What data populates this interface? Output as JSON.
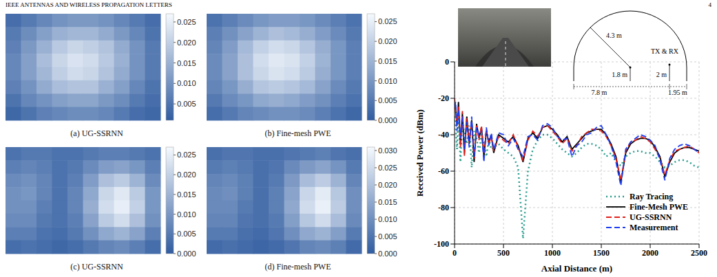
{
  "header": {
    "journal": "IEEE ANTENNAS AND WIRELESS PROPAGATION LETTERS",
    "page": "4"
  },
  "chart_data": [
    {
      "type": "heatmap",
      "caption": "(a) UG-SSRNN",
      "cells": [
        [
          0.004,
          0.006,
          0.008,
          0.01,
          0.011,
          0.011,
          0.01,
          0.008,
          0.006,
          0.004
        ],
        [
          0.006,
          0.009,
          0.012,
          0.015,
          0.016,
          0.016,
          0.014,
          0.011,
          0.008,
          0.005
        ],
        [
          0.007,
          0.011,
          0.015,
          0.019,
          0.021,
          0.02,
          0.018,
          0.014,
          0.01,
          0.006
        ],
        [
          0.008,
          0.012,
          0.017,
          0.021,
          0.023,
          0.022,
          0.019,
          0.015,
          0.01,
          0.006
        ],
        [
          0.008,
          0.012,
          0.016,
          0.02,
          0.022,
          0.021,
          0.018,
          0.014,
          0.01,
          0.006
        ],
        [
          0.007,
          0.01,
          0.014,
          0.017,
          0.018,
          0.018,
          0.015,
          0.012,
          0.008,
          0.005
        ],
        [
          0.005,
          0.008,
          0.01,
          0.012,
          0.013,
          0.013,
          0.011,
          0.009,
          0.006,
          0.004
        ],
        [
          0.003,
          0.005,
          0.007,
          0.008,
          0.009,
          0.009,
          0.008,
          0.006,
          0.004,
          0.003
        ]
      ],
      "colorbar": {
        "range": [
          0.001,
          0.027
        ],
        "ticks": [
          {
            "value": 0.005,
            "label": "0.005"
          },
          {
            "value": 0.01,
            "label": "0.010"
          },
          {
            "value": 0.015,
            "label": "0.015"
          },
          {
            "value": 0.02,
            "label": "0.020"
          },
          {
            "value": 0.025,
            "label": "0.025"
          }
        ]
      }
    },
    {
      "type": "heatmap",
      "caption": "(b) Fine-mesh PWE",
      "cells": [
        [
          0.004,
          0.006,
          0.008,
          0.01,
          0.011,
          0.011,
          0.01,
          0.008,
          0.006,
          0.004
        ],
        [
          0.006,
          0.009,
          0.012,
          0.015,
          0.017,
          0.016,
          0.014,
          0.011,
          0.008,
          0.005
        ],
        [
          0.007,
          0.011,
          0.016,
          0.02,
          0.022,
          0.021,
          0.018,
          0.014,
          0.01,
          0.006
        ],
        [
          0.008,
          0.012,
          0.017,
          0.022,
          0.024,
          0.023,
          0.02,
          0.015,
          0.01,
          0.006
        ],
        [
          0.008,
          0.012,
          0.017,
          0.021,
          0.023,
          0.022,
          0.019,
          0.014,
          0.01,
          0.006
        ],
        [
          0.007,
          0.01,
          0.014,
          0.018,
          0.019,
          0.018,
          0.016,
          0.012,
          0.008,
          0.005
        ],
        [
          0.005,
          0.008,
          0.01,
          0.013,
          0.014,
          0.013,
          0.011,
          0.009,
          0.006,
          0.004
        ],
        [
          0.003,
          0.005,
          0.007,
          0.008,
          0.009,
          0.009,
          0.008,
          0.006,
          0.004,
          0.002
        ]
      ],
      "colorbar": {
        "range": [
          0,
          0.027
        ],
        "ticks": [
          {
            "value": 0,
            "label": "0.000"
          },
          {
            "value": 0.005,
            "label": "0.005"
          },
          {
            "value": 0.01,
            "label": "0.010"
          },
          {
            "value": 0.015,
            "label": "0.015"
          },
          {
            "value": 0.02,
            "label": "0.020"
          },
          {
            "value": 0.025,
            "label": "0.025"
          }
        ]
      }
    },
    {
      "type": "heatmap",
      "caption": "(c) UG-SSRNN",
      "cells": [
        [
          0.004,
          0.005,
          0.005,
          0.004,
          0.004,
          0.005,
          0.006,
          0.006,
          0.005,
          0.004
        ],
        [
          0.006,
          0.007,
          0.006,
          0.004,
          0.005,
          0.008,
          0.011,
          0.012,
          0.01,
          0.006
        ],
        [
          0.008,
          0.009,
          0.007,
          0.004,
          0.006,
          0.011,
          0.017,
          0.019,
          0.015,
          0.008
        ],
        [
          0.009,
          0.01,
          0.007,
          0.004,
          0.007,
          0.013,
          0.021,
          0.024,
          0.019,
          0.01
        ],
        [
          0.009,
          0.009,
          0.006,
          0.004,
          0.007,
          0.014,
          0.022,
          0.025,
          0.02,
          0.01
        ],
        [
          0.008,
          0.008,
          0.005,
          0.004,
          0.006,
          0.012,
          0.019,
          0.022,
          0.017,
          0.009
        ],
        [
          0.006,
          0.006,
          0.004,
          0.003,
          0.005,
          0.009,
          0.013,
          0.015,
          0.012,
          0.006
        ],
        [
          0.003,
          0.004,
          0.003,
          0.002,
          0.003,
          0.005,
          0.007,
          0.008,
          0.006,
          0.003
        ]
      ],
      "colorbar": {
        "range": [
          0,
          0.027
        ],
        "ticks": [
          {
            "value": 0,
            "label": "0.000"
          },
          {
            "value": 0.005,
            "label": "0.005"
          },
          {
            "value": 0.01,
            "label": "0.010"
          },
          {
            "value": 0.015,
            "label": "0.015"
          },
          {
            "value": 0.02,
            "label": "0.020"
          },
          {
            "value": 0.025,
            "label": "0.025"
          }
        ]
      }
    },
    {
      "type": "heatmap",
      "caption": "(d) Fine-mesh PWE",
      "cells": [
        [
          0.004,
          0.005,
          0.005,
          0.004,
          0.004,
          0.005,
          0.006,
          0.007,
          0.005,
          0.004
        ],
        [
          0.006,
          0.007,
          0.006,
          0.004,
          0.005,
          0.009,
          0.012,
          0.014,
          0.011,
          0.006
        ],
        [
          0.008,
          0.009,
          0.007,
          0.004,
          0.006,
          0.012,
          0.019,
          0.022,
          0.017,
          0.008
        ],
        [
          0.009,
          0.01,
          0.007,
          0.004,
          0.007,
          0.014,
          0.024,
          0.028,
          0.021,
          0.01
        ],
        [
          0.009,
          0.009,
          0.006,
          0.004,
          0.007,
          0.015,
          0.025,
          0.029,
          0.022,
          0.01
        ],
        [
          0.008,
          0.008,
          0.005,
          0.004,
          0.006,
          0.013,
          0.021,
          0.025,
          0.019,
          0.009
        ],
        [
          0.006,
          0.006,
          0.004,
          0.003,
          0.005,
          0.01,
          0.015,
          0.017,
          0.013,
          0.006
        ],
        [
          0.003,
          0.004,
          0.003,
          0.002,
          0.003,
          0.005,
          0.008,
          0.009,
          0.007,
          0.003
        ]
      ],
      "colorbar": {
        "range": [
          0,
          0.031
        ],
        "ticks": [
          {
            "value": 0,
            "label": "0.000"
          },
          {
            "value": 0.005,
            "label": "0.005"
          },
          {
            "value": 0.01,
            "label": "0.010"
          },
          {
            "value": 0.015,
            "label": "0.015"
          },
          {
            "value": 0.02,
            "label": "0.020"
          },
          {
            "value": 0.025,
            "label": "0.025"
          },
          {
            "value": 0.03,
            "label": "0.030"
          }
        ]
      }
    },
    {
      "type": "line",
      "xlabel": "Axial Distance (m)",
      "ylabel": "Received Power (dBm)",
      "xlim": [
        0,
        2500
      ],
      "xticks": [
        0,
        500,
        1000,
        1500,
        2000,
        2500
      ],
      "ylim": [
        -100,
        0
      ],
      "yticks": [
        -100,
        -80,
        -60,
        -40,
        -20,
        0
      ],
      "grid": true,
      "legend": "lower right",
      "x": [
        0,
        10,
        25,
        40,
        60,
        80,
        100,
        125,
        150,
        175,
        200,
        225,
        250,
        275,
        300,
        325,
        350,
        375,
        400,
        450,
        500,
        550,
        600,
        650,
        700,
        750,
        800,
        850,
        900,
        950,
        1000,
        1050,
        1100,
        1150,
        1200,
        1250,
        1300,
        1350,
        1400,
        1450,
        1500,
        1550,
        1600,
        1650,
        1700,
        1750,
        1800,
        1850,
        1900,
        1950,
        2000,
        2050,
        2100,
        2150,
        2200,
        2250,
        2300,
        2350,
        2400,
        2450,
        2500
      ],
      "series": [
        {
          "name": "Ray Tracing",
          "color": "#2a9d8f",
          "line_style": "dotted",
          "values": [
            -30,
            -35,
            -48,
            -28,
            -55,
            -32,
            -40,
            -45,
            -35,
            -58,
            -38,
            -42,
            -50,
            -40,
            -45,
            -52,
            -42,
            -48,
            -47,
            -45,
            -48,
            -50,
            -52,
            -58,
            -97,
            -60,
            -48,
            -43,
            -40,
            -40,
            -42,
            -45,
            -48,
            -50,
            -52,
            -50,
            -47,
            -45,
            -45,
            -46,
            -48,
            -52,
            -50,
            -55,
            -57,
            -52,
            -50,
            -49,
            -49,
            -50,
            -50,
            -52,
            -55,
            -58,
            -57,
            -55,
            -54,
            -54,
            -55,
            -57,
            -58
          ]
        },
        {
          "name": "Fine-Mesh PWE",
          "color": "#000000",
          "line_style": "solid",
          "values": [
            -22,
            -25,
            -35,
            -22,
            -45,
            -28,
            -50,
            -30,
            -45,
            -32,
            -55,
            -34,
            -42,
            -36,
            -52,
            -38,
            -44,
            -40,
            -50,
            -40,
            -42,
            -44,
            -41,
            -46,
            -55,
            -42,
            -39,
            -42,
            -36,
            -35,
            -37,
            -40,
            -44,
            -41,
            -48,
            -45,
            -42,
            -39,
            -38,
            -37,
            -37,
            -40,
            -45,
            -52,
            -66,
            -50,
            -45,
            -43,
            -42,
            -42,
            -43,
            -47,
            -52,
            -63,
            -55,
            -50,
            -48,
            -47,
            -47,
            -48,
            -49
          ]
        },
        {
          "name": "UG-SSRNN",
          "color": "#e0201b",
          "line_style": "dashed",
          "values": [
            -20,
            -27,
            -33,
            -24,
            -47,
            -27,
            -52,
            -31,
            -44,
            -33,
            -53,
            -35,
            -43,
            -35,
            -50,
            -37,
            -45,
            -41,
            -49,
            -41,
            -43,
            -45,
            -40,
            -47,
            -54,
            -43,
            -38,
            -41,
            -36,
            -35,
            -38,
            -41,
            -45,
            -42,
            -49,
            -46,
            -41,
            -39,
            -37,
            -37,
            -38,
            -41,
            -46,
            -53,
            -65,
            -49,
            -44,
            -43,
            -41,
            -42,
            -44,
            -48,
            -53,
            -62,
            -54,
            -49,
            -48,
            -47,
            -46,
            -48,
            -50
          ]
        },
        {
          "name": "Measurement",
          "color": "#1f3ff0",
          "line_style": "dashed",
          "values": [
            -25,
            -22,
            -38,
            -26,
            -42,
            -30,
            -48,
            -33,
            -47,
            -30,
            -52,
            -36,
            -40,
            -38,
            -55,
            -36,
            -46,
            -39,
            -48,
            -39,
            -40,
            -46,
            -42,
            -48,
            -52,
            -41,
            -40,
            -43,
            -35,
            -34,
            -36,
            -41,
            -43,
            -42,
            -52,
            -46,
            -44,
            -40,
            -39,
            -36,
            -35,
            -40,
            -46,
            -55,
            -68,
            -48,
            -44,
            -42,
            -40,
            -41,
            -43,
            -46,
            -54,
            -65,
            -53,
            -48,
            -46,
            -45,
            -46,
            -48,
            -50
          ]
        }
      ],
      "annotations": {
        "tx_rx": "TX & RX",
        "radius": "4.3 m",
        "center_height": "1.8 m",
        "antenna_height": "2 m",
        "width": "7.8 m",
        "antenna_offset": "1.95 m"
      }
    }
  ]
}
